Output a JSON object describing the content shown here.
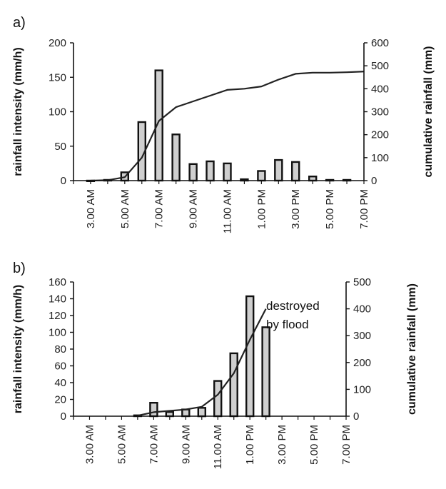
{
  "chart_data": [
    {
      "type": "bar",
      "panel_label": "a)",
      "ylabel": "rainfall intensity (mm/h)",
      "y2label": "cumulative rainfall (mm)",
      "ylim": [
        0,
        200
      ],
      "y2lim": [
        0,
        600
      ],
      "yticks": [
        "0",
        "50",
        "100",
        "150",
        "200"
      ],
      "y2ticks": [
        "0",
        "100",
        "200",
        "300",
        "400",
        "500",
        "600"
      ],
      "x_range_hours": [
        2,
        19
      ],
      "x_tick_labels": [
        "3.00 AM",
        "5.00 AM",
        "7.00 AM",
        "9.00 AM",
        "11.00 AM",
        "1.00 PM",
        "3.00 PM",
        "5.00 PM",
        "7.00 PM"
      ],
      "bars": {
        "name": "rainfall intensity",
        "hours": [
          3,
          4,
          5,
          6,
          7,
          8,
          9,
          10,
          11,
          12,
          13,
          14,
          15,
          16,
          17,
          18
        ],
        "values": [
          0,
          1,
          12,
          85,
          160,
          67,
          24,
          28,
          25,
          2,
          14,
          30,
          27,
          6,
          1,
          1
        ]
      },
      "line": {
        "name": "cumulative rainfall",
        "hours": [
          3,
          4,
          5,
          6,
          7,
          8,
          9,
          10,
          11,
          12,
          13,
          14,
          15,
          16,
          17,
          18,
          19
        ],
        "values": [
          0,
          2,
          15,
          100,
          260,
          320,
          345,
          370,
          395,
          400,
          410,
          440,
          465,
          470,
          470,
          472,
          475
        ]
      }
    },
    {
      "type": "bar",
      "panel_label": "b)",
      "ylabel": "rainfall intensity (mm/h)",
      "y2label": "cumulative rainfall (mm)",
      "ylim": [
        0,
        160
      ],
      "y2lim": [
        0,
        500
      ],
      "yticks": [
        "0",
        "20",
        "40",
        "60",
        "80",
        "100",
        "120",
        "140",
        "160"
      ],
      "y2ticks": [
        "0",
        "100",
        "200",
        "300",
        "400",
        "500"
      ],
      "x_range_hours": [
        2,
        19
      ],
      "x_tick_labels": [
        "3.00 AM",
        "5.00 AM",
        "7.00 AM",
        "9.00 AM",
        "11.00 AM",
        "1.00 PM",
        "3.00 PM",
        "5.00 PM",
        "7.00 PM"
      ],
      "bars": {
        "name": "rainfall intensity",
        "hours": [
          6,
          7,
          8,
          9,
          10,
          11,
          12,
          13,
          14
        ],
        "values": [
          1,
          16,
          5,
          8,
          10,
          42,
          75,
          143,
          106
        ]
      },
      "line": {
        "name": "cumulative rainfall",
        "hours": [
          6,
          7,
          8,
          9,
          10,
          11,
          12,
          13,
          14
        ],
        "values": [
          2,
          15,
          20,
          25,
          35,
          80,
          160,
          285,
          400
        ]
      },
      "annotation": [
        "destroyed",
        "by flood"
      ]
    }
  ]
}
